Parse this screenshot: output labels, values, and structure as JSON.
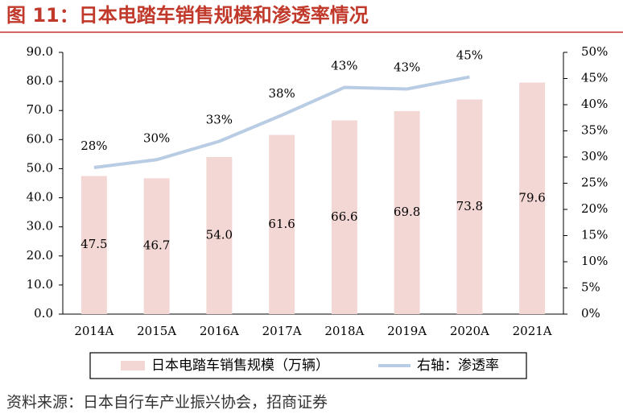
{
  "chart_data": {
    "type": "bar",
    "title": "图 11：日本电踏车销售规模和渗透率情况",
    "source": "资料来源：日本自行车产业振兴协会，招商证券",
    "categories": [
      "2014A",
      "2015A",
      "2016A",
      "2017A",
      "2018A",
      "2019A",
      "2020A",
      "2021A"
    ],
    "series": [
      {
        "name": "日本电踏车销售规模（万辆）",
        "type": "bar",
        "color": "#f2d7d5",
        "values": [
          47.5,
          46.7,
          54.0,
          61.6,
          66.6,
          69.8,
          73.8,
          79.6
        ],
        "value_labels": [
          "47.5",
          "46.7",
          "54.0",
          "61.6",
          "66.6",
          "69.8",
          "73.8",
          "79.6"
        ]
      },
      {
        "name": "右轴：渗透率",
        "type": "line",
        "color": "#b8cce4",
        "axis": "y2",
        "values": [
          28,
          29.5,
          33,
          38,
          43.3,
          43,
          45.3,
          null
        ],
        "value_labels": [
          "28%",
          "30%",
          "33%",
          "38%",
          "43%",
          "43%",
          "45%",
          null
        ]
      }
    ],
    "ylim": [
      0,
      90
    ],
    "yticks": [
      {
        "value": 0,
        "label": "0.0"
      },
      {
        "value": 10,
        "label": "10.0"
      },
      {
        "value": 20,
        "label": "20.0"
      },
      {
        "value": 30,
        "label": "30.0"
      },
      {
        "value": 40,
        "label": "40.0"
      },
      {
        "value": 50,
        "label": "50.0"
      },
      {
        "value": 60,
        "label": "60.0"
      },
      {
        "value": 70,
        "label": "70.0"
      },
      {
        "value": 80,
        "label": "80.0"
      },
      {
        "value": 90,
        "label": "90.0"
      }
    ],
    "y2lim": [
      0,
      50
    ],
    "y2ticks": [
      {
        "value": 0,
        "label": "0%"
      },
      {
        "value": 5,
        "label": "5%"
      },
      {
        "value": 10,
        "label": "10%"
      },
      {
        "value": 15,
        "label": "15%"
      },
      {
        "value": 20,
        "label": "20%"
      },
      {
        "value": 25,
        "label": "25%"
      },
      {
        "value": 30,
        "label": "30%"
      },
      {
        "value": 35,
        "label": "35%"
      },
      {
        "value": 40,
        "label": "40%"
      },
      {
        "value": 45,
        "label": "45%"
      },
      {
        "value": 50,
        "label": "50%"
      }
    ],
    "legend": "bottom"
  }
}
